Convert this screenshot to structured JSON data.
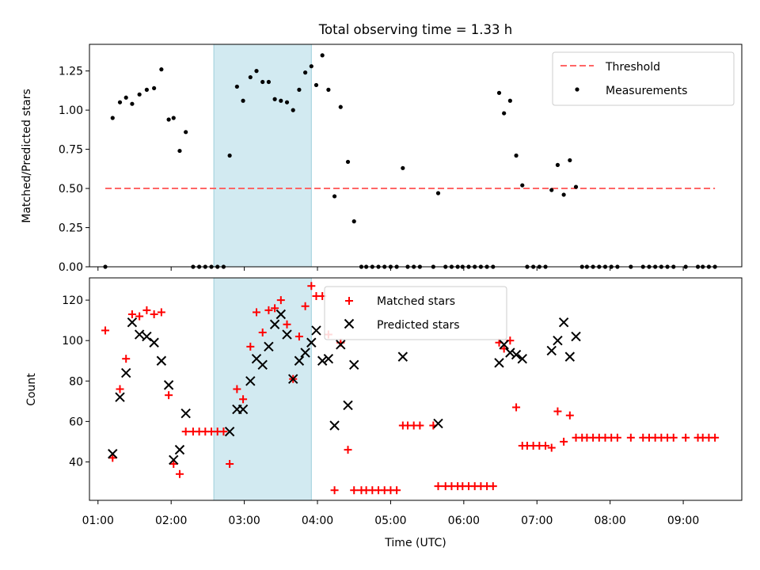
{
  "figure": {
    "title": "Total observing time = 1.33 h"
  },
  "chart_data": [
    {
      "type": "scatter",
      "title": "Total observing time = 1.33 h",
      "xlabel": "",
      "ylabel": "Matched/Predicted stars",
      "xlim": [
        "00:53",
        "09:48"
      ],
      "ylim": [
        0,
        1.42
      ],
      "grid": false,
      "legend": "top-right",
      "yticks": [
        "0.00",
        "0.25",
        "0.50",
        "0.75",
        "1.00",
        "1.25"
      ],
      "shaded_interval": {
        "x": [
          "02:35",
          "03:55"
        ],
        "color": "#add8e6"
      },
      "threshold": {
        "name": "Threshold",
        "value": 0.5,
        "x": [
          "01:06",
          "09:26"
        ],
        "color": "#ff6666"
      },
      "series": [
        {
          "name": "Measurements",
          "color": "#000000",
          "marker": "dot",
          "points": [
            [
              "01:06",
              0.0
            ],
            [
              "01:12",
              0.95
            ],
            [
              "01:18",
              1.05
            ],
            [
              "01:23",
              1.08
            ],
            [
              "01:28",
              1.04
            ],
            [
              "01:34",
              1.1
            ],
            [
              "01:40",
              1.13
            ],
            [
              "01:46",
              1.14
            ],
            [
              "01:52",
              1.26
            ],
            [
              "01:58",
              0.94
            ],
            [
              "02:02",
              0.95
            ],
            [
              "02:07",
              0.74
            ],
            [
              "02:12",
              0.86
            ],
            [
              "02:18",
              0.0
            ],
            [
              "02:23",
              0.0
            ],
            [
              "02:28",
              0.0
            ],
            [
              "02:33",
              0.0
            ],
            [
              "02:38",
              0.0
            ],
            [
              "02:43",
              0.0
            ],
            [
              "02:48",
              0.71
            ],
            [
              "02:54",
              1.15
            ],
            [
              "02:59",
              1.06
            ],
            [
              "03:05",
              1.21
            ],
            [
              "03:10",
              1.25
            ],
            [
              "03:15",
              1.18
            ],
            [
              "03:20",
              1.18
            ],
            [
              "03:25",
              1.07
            ],
            [
              "03:30",
              1.06
            ],
            [
              "03:35",
              1.05
            ],
            [
              "03:40",
              1.0
            ],
            [
              "03:45",
              1.13
            ],
            [
              "03:50",
              1.24
            ],
            [
              "03:55",
              1.28
            ],
            [
              "03:59",
              1.16
            ],
            [
              "04:04",
              1.35
            ],
            [
              "04:09",
              1.13
            ],
            [
              "04:14",
              0.45
            ],
            [
              "04:19",
              1.02
            ],
            [
              "04:25",
              0.67
            ],
            [
              "04:30",
              0.29
            ],
            [
              "04:36",
              0.0
            ],
            [
              "04:40",
              0.0
            ],
            [
              "04:45",
              0.0
            ],
            [
              "04:50",
              0.0
            ],
            [
              "04:55",
              0.0
            ],
            [
              "05:00",
              0.0
            ],
            [
              "05:05",
              0.0
            ],
            [
              "05:10",
              0.63
            ],
            [
              "05:14",
              0.0
            ],
            [
              "05:19",
              0.0
            ],
            [
              "05:24",
              0.0
            ],
            [
              "05:35",
              0.0
            ],
            [
              "05:39",
              0.47
            ],
            [
              "05:45",
              0.0
            ],
            [
              "05:50",
              0.0
            ],
            [
              "05:55",
              0.0
            ],
            [
              "05:59",
              0.0
            ],
            [
              "06:04",
              0.0
            ],
            [
              "06:09",
              0.0
            ],
            [
              "06:14",
              0.0
            ],
            [
              "06:19",
              0.0
            ],
            [
              "06:24",
              0.0
            ],
            [
              "06:29",
              1.11
            ],
            [
              "06:33",
              0.98
            ],
            [
              "06:38",
              1.06
            ],
            [
              "06:43",
              0.71
            ],
            [
              "06:48",
              0.52
            ],
            [
              "06:52",
              0.0
            ],
            [
              "06:57",
              0.0
            ],
            [
              "07:02",
              0.0
            ],
            [
              "07:07",
              0.0
            ],
            [
              "07:12",
              0.49
            ],
            [
              "07:17",
              0.65
            ],
            [
              "07:22",
              0.46
            ],
            [
              "07:27",
              0.68
            ],
            [
              "07:32",
              0.51
            ],
            [
              "07:37",
              0.0
            ],
            [
              "07:41",
              0.0
            ],
            [
              "07:46",
              0.0
            ],
            [
              "07:51",
              0.0
            ],
            [
              "07:56",
              0.0
            ],
            [
              "08:01",
              0.0
            ],
            [
              "08:06",
              0.0
            ],
            [
              "08:17",
              0.0
            ],
            [
              "08:27",
              0.0
            ],
            [
              "08:32",
              0.0
            ],
            [
              "08:37",
              0.0
            ],
            [
              "08:42",
              0.0
            ],
            [
              "08:47",
              0.0
            ],
            [
              "08:52",
              0.0
            ],
            [
              "09:02",
              0.0
            ],
            [
              "09:12",
              0.0
            ],
            [
              "09:16",
              0.0
            ],
            [
              "09:21",
              0.0
            ],
            [
              "09:26",
              0.0
            ]
          ]
        }
      ]
    },
    {
      "type": "scatter",
      "title": "",
      "xlabel": "Time (UTC)",
      "ylabel": "Count",
      "xlim": [
        "00:53",
        "09:48"
      ],
      "ylim": [
        21,
        131
      ],
      "grid": false,
      "legend": "top-center",
      "xticks": [
        "01:00",
        "02:00",
        "03:00",
        "04:00",
        "05:00",
        "06:00",
        "07:00",
        "08:00",
        "09:00"
      ],
      "yticks": [
        "40",
        "60",
        "80",
        "100",
        "120"
      ],
      "shaded_interval": {
        "x": [
          "02:35",
          "03:55"
        ],
        "color": "#add8e6"
      },
      "series": [
        {
          "name": "Matched stars",
          "color": "#ff0000",
          "marker": "plus",
          "points": [
            [
              "01:06",
              105
            ],
            [
              "01:12",
              42
            ],
            [
              "01:18",
              76
            ],
            [
              "01:23",
              91
            ],
            [
              "01:28",
              113
            ],
            [
              "01:34",
              112
            ],
            [
              "01:40",
              115
            ],
            [
              "01:46",
              113
            ],
            [
              "01:52",
              114
            ],
            [
              "01:58",
              73
            ],
            [
              "02:02",
              39
            ],
            [
              "02:07",
              34
            ],
            [
              "02:12",
              55
            ],
            [
              "02:18",
              55
            ],
            [
              "02:23",
              55
            ],
            [
              "02:28",
              55
            ],
            [
              "02:33",
              55
            ],
            [
              "02:38",
              55
            ],
            [
              "02:43",
              55
            ],
            [
              "02:48",
              39
            ],
            [
              "02:54",
              76
            ],
            [
              "02:59",
              71
            ],
            [
              "03:05",
              97
            ],
            [
              "03:10",
              114
            ],
            [
              "03:15",
              104
            ],
            [
              "03:20",
              115
            ],
            [
              "03:25",
              116
            ],
            [
              "03:30",
              120
            ],
            [
              "03:35",
              108
            ],
            [
              "03:40",
              81
            ],
            [
              "03:45",
              102
            ],
            [
              "03:50",
              117
            ],
            [
              "03:55",
              127
            ],
            [
              "03:59",
              122
            ],
            [
              "04:04",
              122
            ],
            [
              "04:09",
              103
            ],
            [
              "04:14",
              26
            ],
            [
              "04:19",
              99
            ],
            [
              "04:25",
              46
            ],
            [
              "04:30",
              26
            ],
            [
              "04:36",
              26
            ],
            [
              "04:40",
              26
            ],
            [
              "04:45",
              26
            ],
            [
              "04:50",
              26
            ],
            [
              "04:55",
              26
            ],
            [
              "05:00",
              26
            ],
            [
              "05:05",
              26
            ],
            [
              "05:10",
              58
            ],
            [
              "05:14",
              58
            ],
            [
              "05:19",
              58
            ],
            [
              "05:24",
              58
            ],
            [
              "05:35",
              58
            ],
            [
              "05:39",
              28
            ],
            [
              "05:45",
              28
            ],
            [
              "05:50",
              28
            ],
            [
              "05:55",
              28
            ],
            [
              "05:59",
              28
            ],
            [
              "06:04",
              28
            ],
            [
              "06:09",
              28
            ],
            [
              "06:14",
              28
            ],
            [
              "06:19",
              28
            ],
            [
              "06:24",
              28
            ],
            [
              "06:29",
              99
            ],
            [
              "06:33",
              96
            ],
            [
              "06:38",
              100
            ],
            [
              "06:43",
              67
            ],
            [
              "06:48",
              48
            ],
            [
              "06:52",
              48
            ],
            [
              "06:57",
              48
            ],
            [
              "07:02",
              48
            ],
            [
              "07:07",
              48
            ],
            [
              "07:12",
              47
            ],
            [
              "07:17",
              65
            ],
            [
              "07:22",
              50
            ],
            [
              "07:27",
              63
            ],
            [
              "07:32",
              52
            ],
            [
              "07:37",
              52
            ],
            [
              "07:41",
              52
            ],
            [
              "07:46",
              52
            ],
            [
              "07:51",
              52
            ],
            [
              "07:56",
              52
            ],
            [
              "08:01",
              52
            ],
            [
              "08:06",
              52
            ],
            [
              "08:17",
              52
            ],
            [
              "08:27",
              52
            ],
            [
              "08:32",
              52
            ],
            [
              "08:37",
              52
            ],
            [
              "08:42",
              52
            ],
            [
              "08:47",
              52
            ],
            [
              "08:52",
              52
            ],
            [
              "09:02",
              52
            ],
            [
              "09:12",
              52
            ],
            [
              "09:16",
              52
            ],
            [
              "09:21",
              52
            ],
            [
              "09:26",
              52
            ]
          ]
        },
        {
          "name": "Predicted stars",
          "color": "#000000",
          "marker": "cross",
          "points": [
            [
              "01:12",
              44
            ],
            [
              "01:18",
              72
            ],
            [
              "01:23",
              84
            ],
            [
              "01:28",
              109
            ],
            [
              "01:34",
              103
            ],
            [
              "01:40",
              102
            ],
            [
              "01:46",
              99
            ],
            [
              "01:52",
              90
            ],
            [
              "01:58",
              78
            ],
            [
              "02:02",
              41
            ],
            [
              "02:07",
              46
            ],
            [
              "02:12",
              64
            ],
            [
              "02:48",
              55
            ],
            [
              "02:54",
              66
            ],
            [
              "02:59",
              66
            ],
            [
              "03:05",
              80
            ],
            [
              "03:10",
              91
            ],
            [
              "03:15",
              88
            ],
            [
              "03:20",
              97
            ],
            [
              "03:25",
              108
            ],
            [
              "03:30",
              113
            ],
            [
              "03:35",
              103
            ],
            [
              "03:40",
              81
            ],
            [
              "03:45",
              90
            ],
            [
              "03:50",
              94
            ],
            [
              "03:55",
              99
            ],
            [
              "03:59",
              105
            ],
            [
              "04:04",
              90
            ],
            [
              "04:09",
              91
            ],
            [
              "04:14",
              58
            ],
            [
              "04:19",
              98
            ],
            [
              "04:25",
              68
            ],
            [
              "04:30",
              88
            ],
            [
              "05:10",
              92
            ],
            [
              "05:39",
              59
            ],
            [
              "06:29",
              89
            ],
            [
              "06:33",
              98
            ],
            [
              "06:38",
              94
            ],
            [
              "06:43",
              93
            ],
            [
              "06:48",
              91
            ],
            [
              "07:12",
              95
            ],
            [
              "07:17",
              100
            ],
            [
              "07:22",
              109
            ],
            [
              "07:27",
              92
            ],
            [
              "07:32",
              102
            ]
          ]
        }
      ]
    }
  ]
}
